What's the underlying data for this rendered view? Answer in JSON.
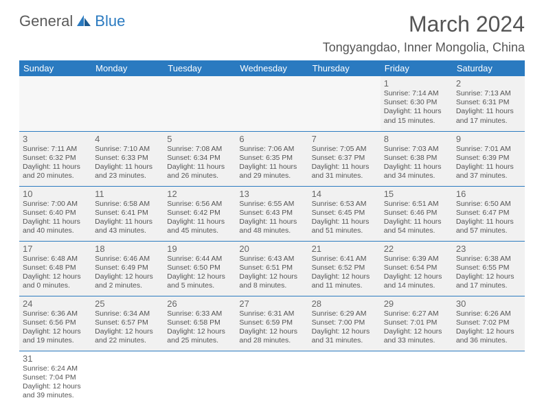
{
  "logo": {
    "word1": "General",
    "word2": "Blue"
  },
  "title": "March 2024",
  "location": "Tongyangdao, Inner Mongolia, China",
  "colors": {
    "accent": "#2a7ac0",
    "bg": "#ffffff",
    "cell": "#f1f1f1",
    "text": "#5a5a5a"
  },
  "weekdays": [
    "Sunday",
    "Monday",
    "Tuesday",
    "Wednesday",
    "Thursday",
    "Friday",
    "Saturday"
  ],
  "weeks": [
    [
      null,
      null,
      null,
      null,
      null,
      {
        "n": "1",
        "r": "Sunrise: 7:14 AM",
        "s": "Sunset: 6:30 PM",
        "d1": "Daylight: 11 hours",
        "d2": "and 15 minutes."
      },
      {
        "n": "2",
        "r": "Sunrise: 7:13 AM",
        "s": "Sunset: 6:31 PM",
        "d1": "Daylight: 11 hours",
        "d2": "and 17 minutes."
      }
    ],
    [
      {
        "n": "3",
        "r": "Sunrise: 7:11 AM",
        "s": "Sunset: 6:32 PM",
        "d1": "Daylight: 11 hours",
        "d2": "and 20 minutes."
      },
      {
        "n": "4",
        "r": "Sunrise: 7:10 AM",
        "s": "Sunset: 6:33 PM",
        "d1": "Daylight: 11 hours",
        "d2": "and 23 minutes."
      },
      {
        "n": "5",
        "r": "Sunrise: 7:08 AM",
        "s": "Sunset: 6:34 PM",
        "d1": "Daylight: 11 hours",
        "d2": "and 26 minutes."
      },
      {
        "n": "6",
        "r": "Sunrise: 7:06 AM",
        "s": "Sunset: 6:35 PM",
        "d1": "Daylight: 11 hours",
        "d2": "and 29 minutes."
      },
      {
        "n": "7",
        "r": "Sunrise: 7:05 AM",
        "s": "Sunset: 6:37 PM",
        "d1": "Daylight: 11 hours",
        "d2": "and 31 minutes."
      },
      {
        "n": "8",
        "r": "Sunrise: 7:03 AM",
        "s": "Sunset: 6:38 PM",
        "d1": "Daylight: 11 hours",
        "d2": "and 34 minutes."
      },
      {
        "n": "9",
        "r": "Sunrise: 7:01 AM",
        "s": "Sunset: 6:39 PM",
        "d1": "Daylight: 11 hours",
        "d2": "and 37 minutes."
      }
    ],
    [
      {
        "n": "10",
        "r": "Sunrise: 7:00 AM",
        "s": "Sunset: 6:40 PM",
        "d1": "Daylight: 11 hours",
        "d2": "and 40 minutes."
      },
      {
        "n": "11",
        "r": "Sunrise: 6:58 AM",
        "s": "Sunset: 6:41 PM",
        "d1": "Daylight: 11 hours",
        "d2": "and 43 minutes."
      },
      {
        "n": "12",
        "r": "Sunrise: 6:56 AM",
        "s": "Sunset: 6:42 PM",
        "d1": "Daylight: 11 hours",
        "d2": "and 45 minutes."
      },
      {
        "n": "13",
        "r": "Sunrise: 6:55 AM",
        "s": "Sunset: 6:43 PM",
        "d1": "Daylight: 11 hours",
        "d2": "and 48 minutes."
      },
      {
        "n": "14",
        "r": "Sunrise: 6:53 AM",
        "s": "Sunset: 6:45 PM",
        "d1": "Daylight: 11 hours",
        "d2": "and 51 minutes."
      },
      {
        "n": "15",
        "r": "Sunrise: 6:51 AM",
        "s": "Sunset: 6:46 PM",
        "d1": "Daylight: 11 hours",
        "d2": "and 54 minutes."
      },
      {
        "n": "16",
        "r": "Sunrise: 6:50 AM",
        "s": "Sunset: 6:47 PM",
        "d1": "Daylight: 11 hours",
        "d2": "and 57 minutes."
      }
    ],
    [
      {
        "n": "17",
        "r": "Sunrise: 6:48 AM",
        "s": "Sunset: 6:48 PM",
        "d1": "Daylight: 12 hours",
        "d2": "and 0 minutes."
      },
      {
        "n": "18",
        "r": "Sunrise: 6:46 AM",
        "s": "Sunset: 6:49 PM",
        "d1": "Daylight: 12 hours",
        "d2": "and 2 minutes."
      },
      {
        "n": "19",
        "r": "Sunrise: 6:44 AM",
        "s": "Sunset: 6:50 PM",
        "d1": "Daylight: 12 hours",
        "d2": "and 5 minutes."
      },
      {
        "n": "20",
        "r": "Sunrise: 6:43 AM",
        "s": "Sunset: 6:51 PM",
        "d1": "Daylight: 12 hours",
        "d2": "and 8 minutes."
      },
      {
        "n": "21",
        "r": "Sunrise: 6:41 AM",
        "s": "Sunset: 6:52 PM",
        "d1": "Daylight: 12 hours",
        "d2": "and 11 minutes."
      },
      {
        "n": "22",
        "r": "Sunrise: 6:39 AM",
        "s": "Sunset: 6:54 PM",
        "d1": "Daylight: 12 hours",
        "d2": "and 14 minutes."
      },
      {
        "n": "23",
        "r": "Sunrise: 6:38 AM",
        "s": "Sunset: 6:55 PM",
        "d1": "Daylight: 12 hours",
        "d2": "and 17 minutes."
      }
    ],
    [
      {
        "n": "24",
        "r": "Sunrise: 6:36 AM",
        "s": "Sunset: 6:56 PM",
        "d1": "Daylight: 12 hours",
        "d2": "and 19 minutes."
      },
      {
        "n": "25",
        "r": "Sunrise: 6:34 AM",
        "s": "Sunset: 6:57 PM",
        "d1": "Daylight: 12 hours",
        "d2": "and 22 minutes."
      },
      {
        "n": "26",
        "r": "Sunrise: 6:33 AM",
        "s": "Sunset: 6:58 PM",
        "d1": "Daylight: 12 hours",
        "d2": "and 25 minutes."
      },
      {
        "n": "27",
        "r": "Sunrise: 6:31 AM",
        "s": "Sunset: 6:59 PM",
        "d1": "Daylight: 12 hours",
        "d2": "and 28 minutes."
      },
      {
        "n": "28",
        "r": "Sunrise: 6:29 AM",
        "s": "Sunset: 7:00 PM",
        "d1": "Daylight: 12 hours",
        "d2": "and 31 minutes."
      },
      {
        "n": "29",
        "r": "Sunrise: 6:27 AM",
        "s": "Sunset: 7:01 PM",
        "d1": "Daylight: 12 hours",
        "d2": "and 33 minutes."
      },
      {
        "n": "30",
        "r": "Sunrise: 6:26 AM",
        "s": "Sunset: 7:02 PM",
        "d1": "Daylight: 12 hours",
        "d2": "and 36 minutes."
      }
    ],
    [
      {
        "n": "31",
        "r": "Sunrise: 6:24 AM",
        "s": "Sunset: 7:04 PM",
        "d1": "Daylight: 12 hours",
        "d2": "and 39 minutes."
      },
      null,
      null,
      null,
      null,
      null,
      null
    ]
  ]
}
